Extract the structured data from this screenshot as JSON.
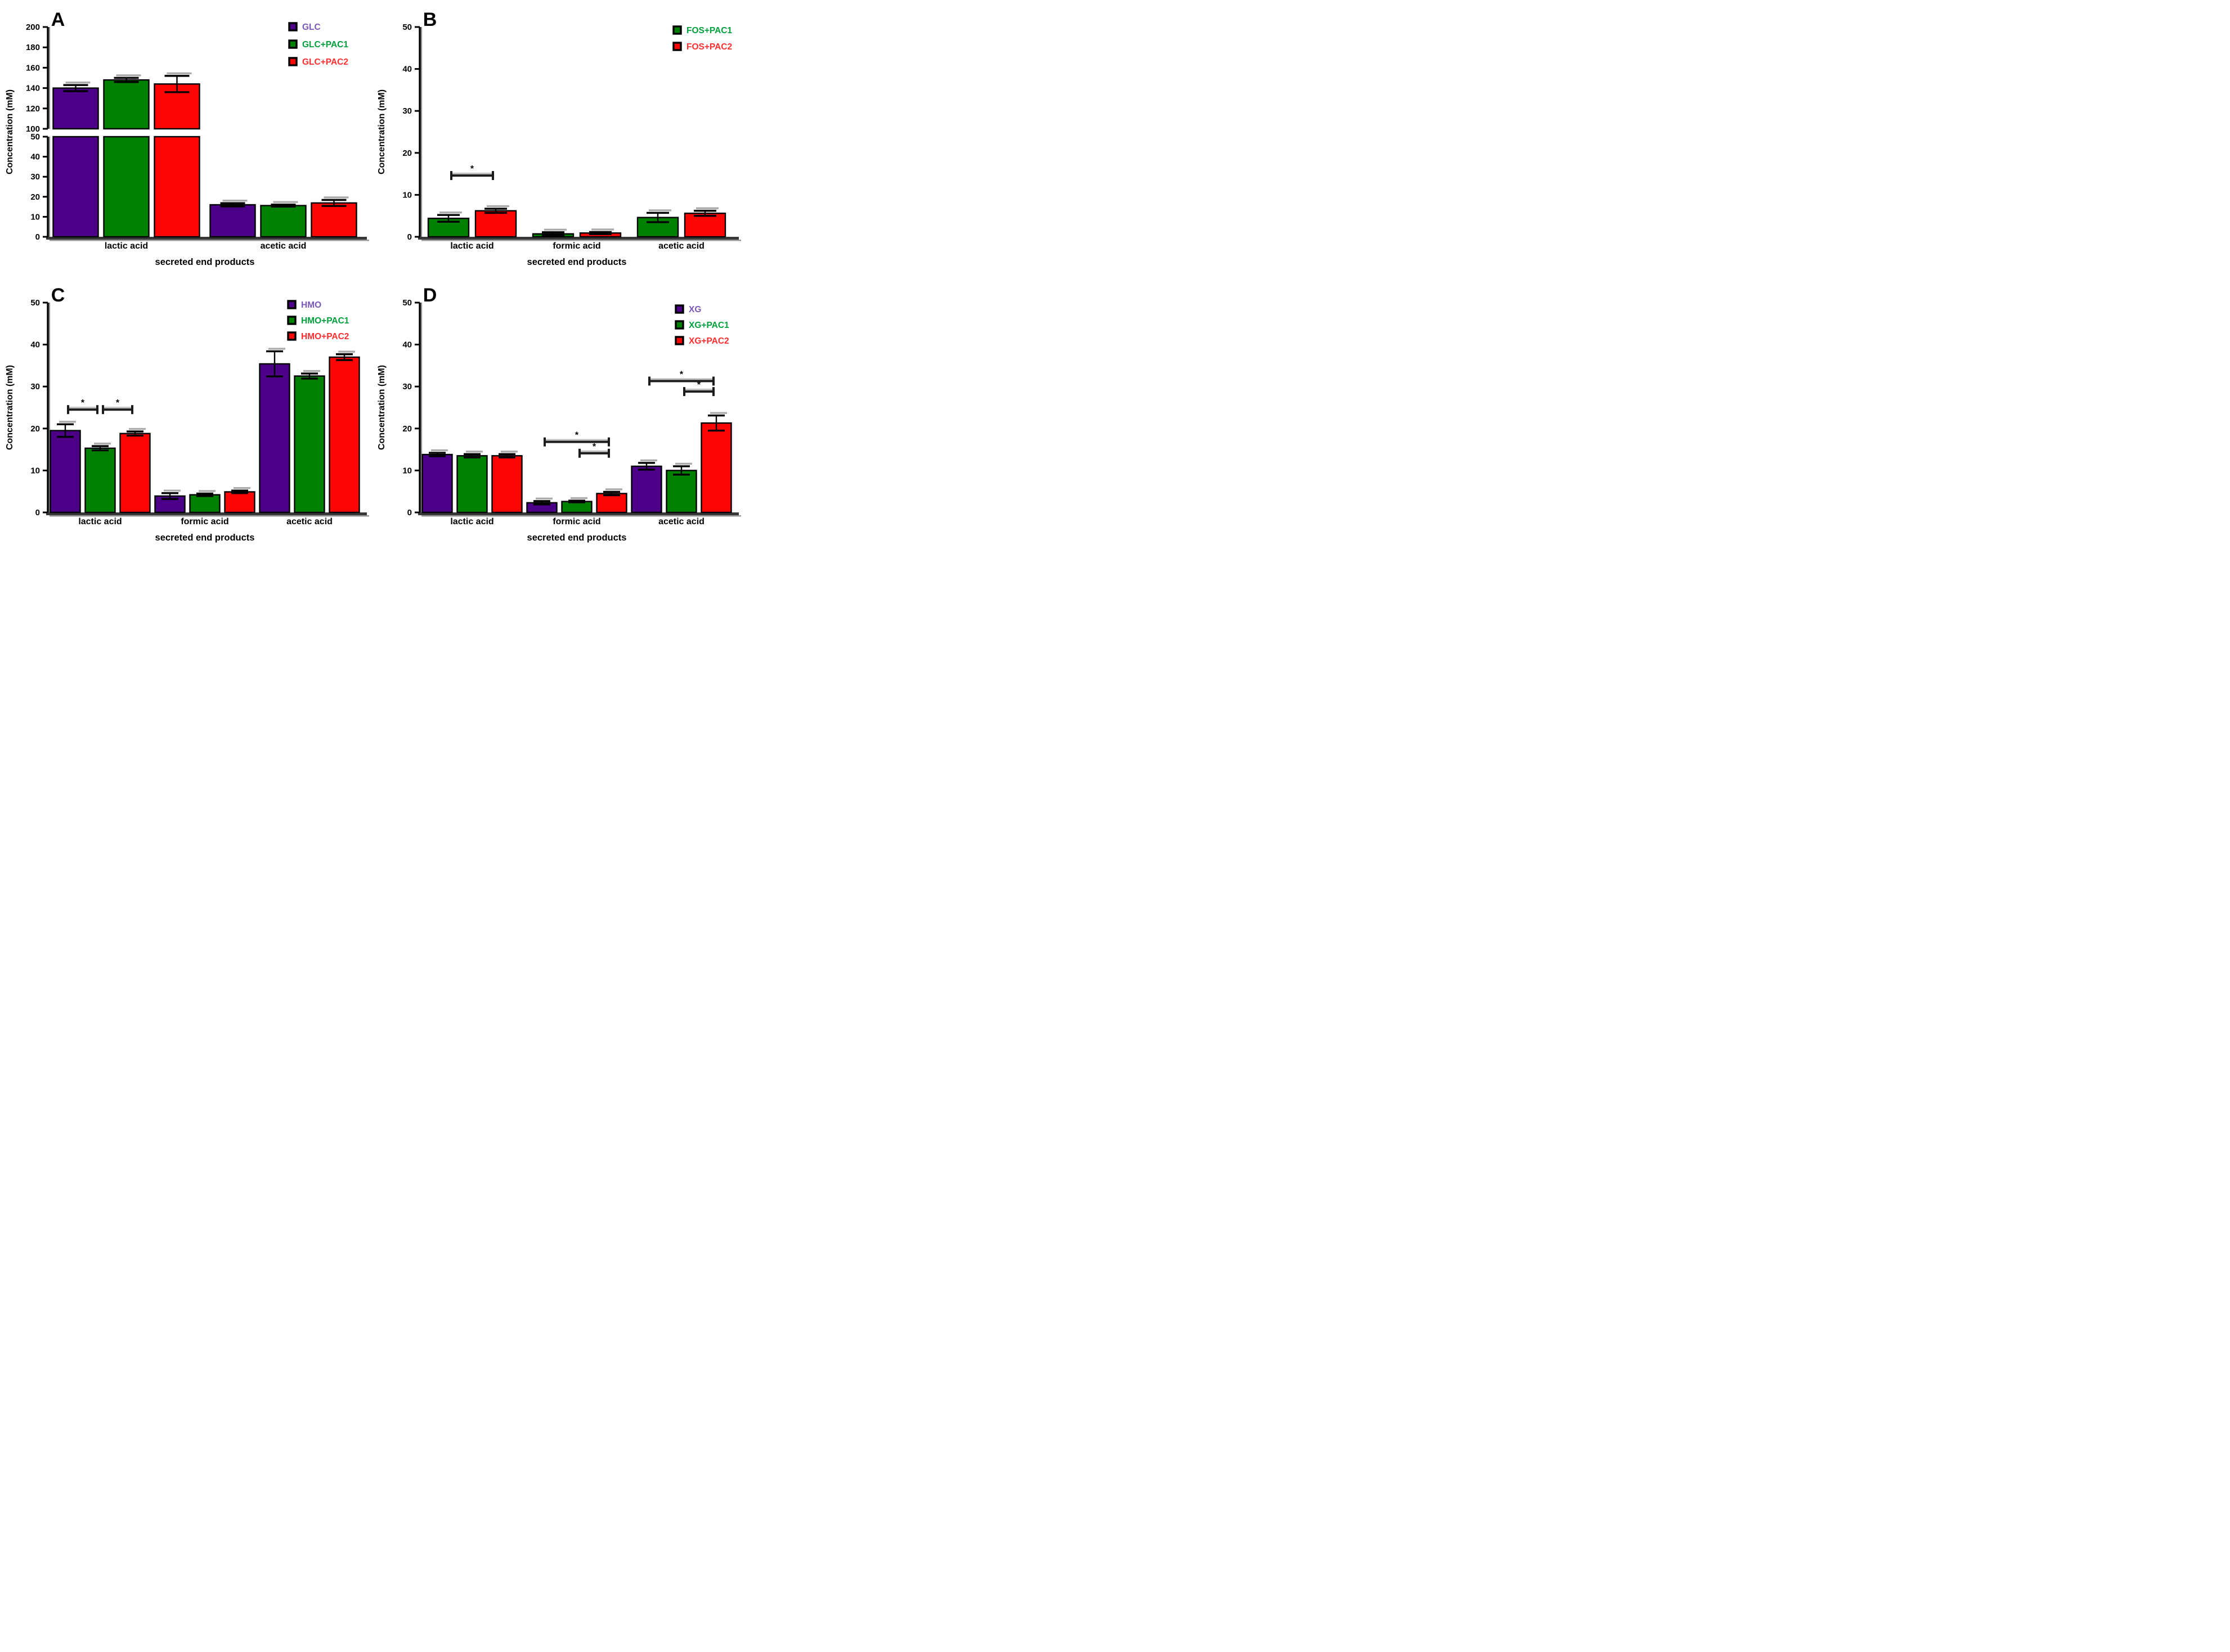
{
  "figure": {
    "background": "#ffffff",
    "ylabel": "Concentration (mM)",
    "xlabel": "secreted end products"
  },
  "chart_data": [
    {
      "panel_letter": "A",
      "type": "bar",
      "ylabel": "Concentration (mM)",
      "xlabel": "secreted end products",
      "categories": [
        "lactic acid",
        "acetic acid"
      ],
      "axis_break": true,
      "ylim_lower": [
        0,
        50
      ],
      "ylim_upper": [
        100,
        200
      ],
      "yticks_lower": [
        0,
        10,
        20,
        30,
        40,
        50
      ],
      "yticks_upper": [
        100,
        120,
        140,
        160,
        180,
        200
      ],
      "grid": false,
      "legend_position": "top-right",
      "series": [
        {
          "name": "GLC",
          "color": "#4B0087",
          "label_color": "#7B57B8",
          "values": [
            140,
            16.0
          ],
          "errors": [
            3,
            0.8
          ]
        },
        {
          "name": "GLC+PAC1",
          "color": "#008000",
          "label_color": "#00A03C",
          "values": [
            148,
            15.6
          ],
          "errors": [
            2,
            0.5
          ]
        },
        {
          "name": "GLC+PAC2",
          "color": "#FB0505",
          "label_color": "#FF2E2E",
          "values": [
            144,
            16.9
          ],
          "errors": [
            8,
            1.5
          ]
        }
      ],
      "brackets": []
    },
    {
      "panel_letter": "B",
      "type": "bar",
      "ylabel": "Concentration (mM)",
      "xlabel": "secreted end products",
      "categories": [
        "lactic acid",
        "formic acid",
        "acetic acid"
      ],
      "axis_break": false,
      "ylim": [
        0,
        50
      ],
      "yticks": [
        0,
        10,
        20,
        30,
        40,
        50
      ],
      "grid": false,
      "legend_position": "top-right",
      "series": [
        {
          "name": "FOS+PAC1",
          "color": "#008000",
          "label_color": "#00A03C",
          "values": [
            4.4,
            0.7,
            4.6
          ],
          "errors": [
            0.8,
            0.4,
            1.1
          ]
        },
        {
          "name": "FOS+PAC2",
          "color": "#FB0505",
          "label_color": "#FF2E2E",
          "values": [
            6.2,
            0.9,
            5.6
          ],
          "errors": [
            0.5,
            0.25,
            0.6
          ]
        }
      ],
      "brackets": [
        {
          "category": 0,
          "from": 0,
          "to": 1,
          "y": 14.6,
          "label": "*"
        }
      ]
    },
    {
      "panel_letter": "C",
      "type": "bar",
      "ylabel": "Concentration (mM)",
      "xlabel": "secreted end products",
      "categories": [
        "lactic acid",
        "formic acid",
        "acetic acid"
      ],
      "axis_break": false,
      "ylim": [
        0,
        50
      ],
      "yticks": [
        0,
        10,
        20,
        30,
        40,
        50
      ],
      "grid": false,
      "legend_position": "top-right",
      "series": [
        {
          "name": "HMO",
          "color": "#4B0087",
          "label_color": "#7B57B8",
          "values": [
            19.5,
            3.9,
            35.4
          ],
          "errors": [
            1.5,
            0.7,
            3.0
          ]
        },
        {
          "name": "HMO+PAC1",
          "color": "#008000",
          "label_color": "#00A03C",
          "values": [
            15.3,
            4.2,
            32.5
          ],
          "errors": [
            0.5,
            0.3,
            0.6
          ]
        },
        {
          "name": "HMO+PAC2",
          "color": "#FB0505",
          "label_color": "#FF2E2E",
          "values": [
            18.8,
            4.9,
            37.0
          ],
          "errors": [
            0.5,
            0.3,
            0.7
          ]
        }
      ],
      "brackets": [
        {
          "category": 0,
          "from": 0,
          "to": 1,
          "y": 24.5,
          "label": "*"
        },
        {
          "category": 0,
          "from": 1,
          "to": 2,
          "y": 24.5,
          "label": "*"
        }
      ]
    },
    {
      "panel_letter": "D",
      "type": "bar",
      "ylabel": "Concentration (mM)",
      "xlabel": "secreted end products",
      "categories": [
        "lactic acid",
        "formic acid",
        "acetic acid"
      ],
      "axis_break": false,
      "ylim": [
        0,
        50
      ],
      "yticks": [
        0,
        10,
        20,
        30,
        40,
        50
      ],
      "grid": false,
      "legend_position": "top-right",
      "series": [
        {
          "name": "XG",
          "color": "#4B0087",
          "label_color": "#7B57B8",
          "values": [
            13.8,
            2.3,
            11.0
          ],
          "errors": [
            0.4,
            0.4,
            0.8
          ]
        },
        {
          "name": "XG+PAC1",
          "color": "#008000",
          "label_color": "#00A03C",
          "values": [
            13.5,
            2.6,
            10.0
          ],
          "errors": [
            0.4,
            0.2,
            1.0
          ]
        },
        {
          "name": "XG+PAC2",
          "color": "#FB0505",
          "label_color": "#FF2E2E",
          "values": [
            13.5,
            4.5,
            21.3
          ],
          "errors": [
            0.4,
            0.4,
            1.8
          ]
        }
      ],
      "brackets": [
        {
          "category": 1,
          "from": 0,
          "to": 2,
          "y": 16.8,
          "label": "*"
        },
        {
          "category": 1,
          "from": 1,
          "to": 2,
          "y": 14.1,
          "label": "*"
        },
        {
          "category": 2,
          "from": 0,
          "to": 2,
          "y": 31.3,
          "label": "*"
        },
        {
          "category": 2,
          "from": 1,
          "to": 2,
          "y": 28.8,
          "label": "*"
        }
      ]
    }
  ]
}
